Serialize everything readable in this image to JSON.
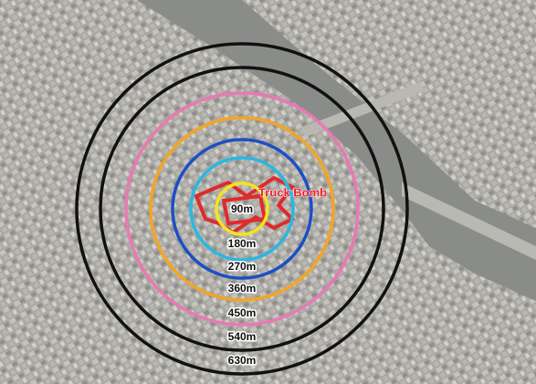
{
  "map": {
    "target_label": "Truck Bomb",
    "rings": [
      {
        "label": "90m",
        "color": "#f5e51d"
      },
      {
        "label": "180m",
        "color": "#2ab7e0"
      },
      {
        "label": "270m",
        "color": "#1d4fc4"
      },
      {
        "label": "360m",
        "color": "#f2a526"
      },
      {
        "label": "450m",
        "color": "#e979b3"
      },
      {
        "label": "540m",
        "color": "#111111"
      },
      {
        "label": "630m",
        "color": "#111111"
      }
    ]
  }
}
